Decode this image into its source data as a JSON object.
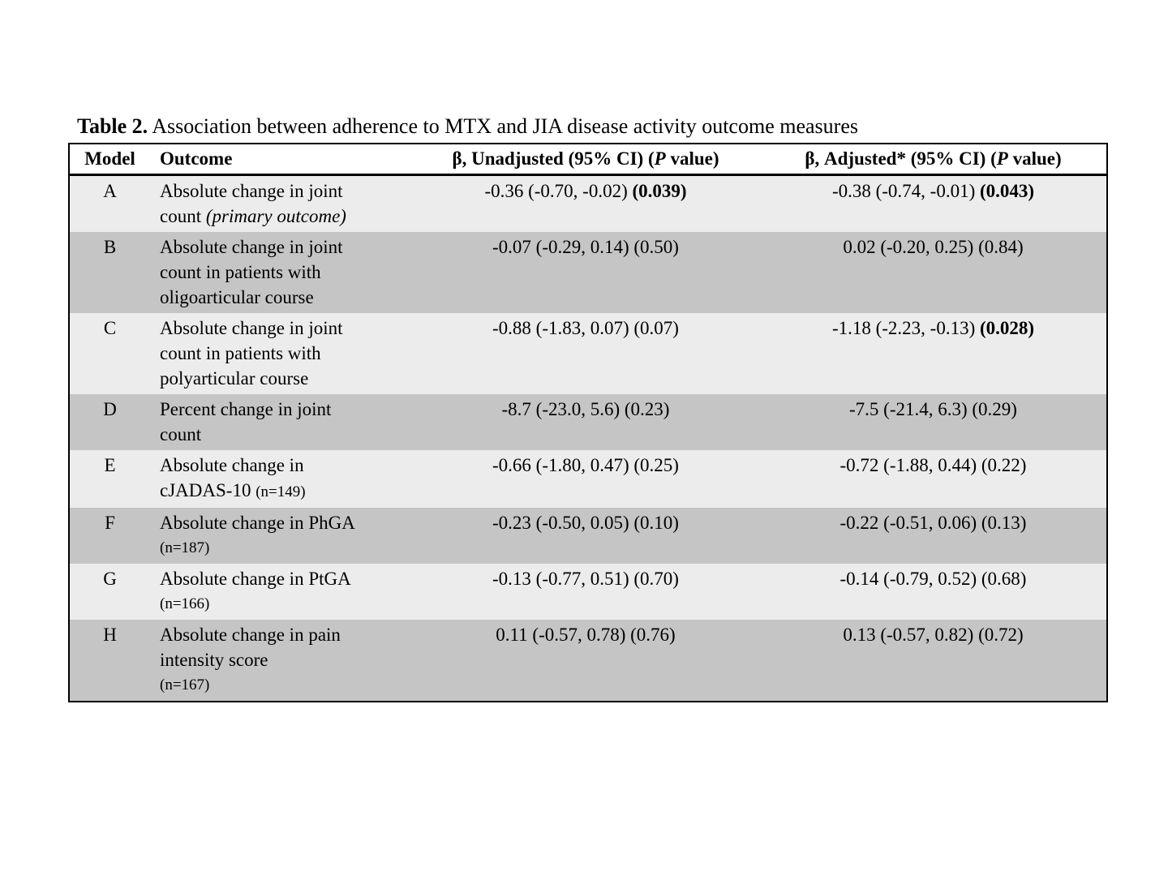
{
  "title": {
    "prefix": "Table 2.",
    "rest": " Association between adherence to MTX and JIA disease activity outcome measures"
  },
  "colors": {
    "row_light": "#ececec",
    "row_dark": "#c5c5c5",
    "header_bg": "#ffffff",
    "border": "#000000",
    "page_bg": "#ffffff"
  },
  "table": {
    "headers": {
      "model": "Model",
      "outcome": "Outcome",
      "unadjusted": {
        "pre": "β, Unadjusted (95% CI) (",
        "p": "P",
        "post": " value)"
      },
      "adjusted": {
        "pre": "β, Adjusted* (95% CI) (",
        "p": "P",
        "post": " value)"
      }
    },
    "rows": [
      {
        "model": "A",
        "outcome": {
          "l1": "Absolute change in joint",
          "l2": "count ",
          "l2_italic": "(primary outcome)"
        },
        "unadjusted": {
          "text": "-0.36 (-0.70, -0.02) ",
          "bold": "(0.039)"
        },
        "adjusted": {
          "text": "-0.38 (-0.74, -0.01) ",
          "bold": "(0.043)"
        }
      },
      {
        "model": "B",
        "outcome": {
          "l1": "Absolute change in joint",
          "l2": "count in patients with",
          "l3": "oligoarticular course"
        },
        "unadjusted": {
          "text": "-0.07 (-0.29, 0.14) (0.50)"
        },
        "adjusted": {
          "text": "0.02 (-0.20, 0.25) (0.84)"
        }
      },
      {
        "model": "C",
        "outcome": {
          "l1": "Absolute change in joint",
          "l2": "count in patients with",
          "l3": "polyarticular course"
        },
        "unadjusted": {
          "text": "-0.88 (-1.83, 0.07) (0.07)"
        },
        "adjusted": {
          "text": "-1.18 (-2.23, -0.13) ",
          "bold": "(0.028)"
        }
      },
      {
        "model": "D",
        "outcome": {
          "l1": "Percent change in joint",
          "l2": "count"
        },
        "unadjusted": {
          "text": "-8.7 (-23.0, 5.6) (0.23)"
        },
        "adjusted": {
          "text": "-7.5 (-21.4, 6.3) (0.29)"
        }
      },
      {
        "model": "E",
        "outcome": {
          "l1": "Absolute change in",
          "l2": "cJADAS-10 ",
          "l2_small": "(n=149)"
        },
        "unadjusted": {
          "text": "-0.66 (-1.80, 0.47) (0.25)"
        },
        "adjusted": {
          "text": "-0.72 (-1.88, 0.44) (0.22)"
        }
      },
      {
        "model": "F",
        "outcome": {
          "l1": "Absolute change in PhGA",
          "l2_small": "(n=187)"
        },
        "unadjusted": {
          "text": "-0.23 (-0.50, 0.05) (0.10)"
        },
        "adjusted": {
          "text": "-0.22 (-0.51, 0.06) (0.13)"
        }
      },
      {
        "model": "G",
        "outcome": {
          "l1": "Absolute change in PtGA",
          "l2_small": "(n=166)"
        },
        "unadjusted": {
          "text": "-0.13 (-0.77, 0.51) (0.70)"
        },
        "adjusted": {
          "text": "-0.14 (-0.79, 0.52) (0.68)"
        }
      },
      {
        "model": "H",
        "outcome": {
          "l1": "Absolute change in pain",
          "l2": "intensity score",
          "l3_small": "(n=167)"
        },
        "unadjusted": {
          "text": "0.11 (-0.57, 0.78) (0.76)"
        },
        "adjusted": {
          "text": "0.13 (-0.57, 0.82) (0.72)"
        }
      }
    ]
  }
}
